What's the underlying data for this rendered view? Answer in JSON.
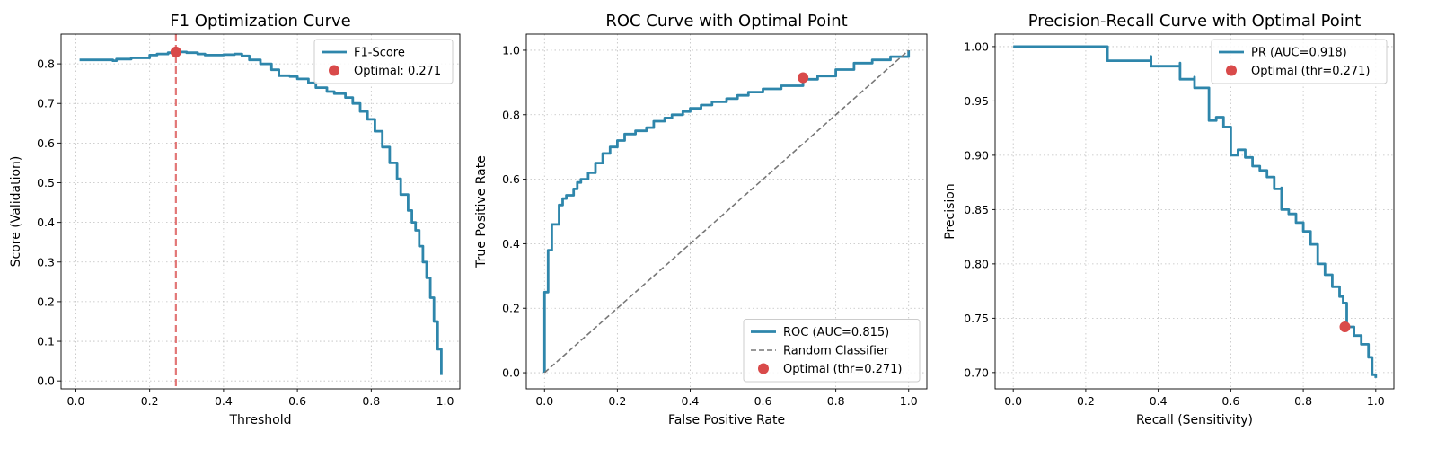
{
  "chart_data": [
    {
      "type": "line",
      "title": "F1 Optimization Curve",
      "xlabel": "Threshold",
      "ylabel": "Score (Validation)",
      "xlim": [
        -0.04,
        1.04
      ],
      "ylim": [
        -0.02,
        0.875
      ],
      "xticks": [
        0.0,
        0.2,
        0.4,
        0.6,
        0.8,
        1.0
      ],
      "xtick_labels": [
        "0.0",
        "0.2",
        "0.4",
        "0.6",
        "0.8",
        "1.0"
      ],
      "yticks": [
        0.0,
        0.1,
        0.2,
        0.3,
        0.4,
        0.5,
        0.6,
        0.7,
        0.8
      ],
      "ytick_labels": [
        "0.0",
        "0.1",
        "0.2",
        "0.3",
        "0.4",
        "0.5",
        "0.6",
        "0.7",
        "0.8"
      ],
      "grid": true,
      "legend_position": "top-right",
      "series": [
        {
          "name": "F1-Score",
          "color": "#2e86ab",
          "style": "step",
          "x": [
            0.01,
            0.05,
            0.1,
            0.11,
            0.15,
            0.2,
            0.22,
            0.25,
            0.27,
            0.3,
            0.33,
            0.35,
            0.4,
            0.43,
            0.45,
            0.47,
            0.5,
            0.53,
            0.55,
            0.58,
            0.6,
            0.63,
            0.65,
            0.68,
            0.7,
            0.73,
            0.75,
            0.77,
            0.79,
            0.81,
            0.83,
            0.85,
            0.87,
            0.88,
            0.9,
            0.91,
            0.92,
            0.93,
            0.94,
            0.95,
            0.96,
            0.97,
            0.98,
            0.99
          ],
          "y": [
            0.81,
            0.81,
            0.808,
            0.812,
            0.815,
            0.822,
            0.825,
            0.828,
            0.83,
            0.828,
            0.825,
            0.822,
            0.823,
            0.825,
            0.82,
            0.81,
            0.8,
            0.785,
            0.77,
            0.768,
            0.762,
            0.752,
            0.74,
            0.73,
            0.725,
            0.715,
            0.7,
            0.68,
            0.66,
            0.63,
            0.59,
            0.55,
            0.51,
            0.47,
            0.43,
            0.4,
            0.38,
            0.34,
            0.3,
            0.26,
            0.21,
            0.15,
            0.08,
            0.015
          ]
        }
      ],
      "optimal_point": {
        "label": "Optimal: 0.271",
        "x": 0.271,
        "y": 0.83,
        "color": "#d94a4a"
      },
      "vline": {
        "x": 0.271,
        "color": "#d94a4a"
      }
    },
    {
      "type": "line",
      "title": "ROC Curve with Optimal Point",
      "xlabel": "False Positive Rate",
      "ylabel": "True Positive Rate",
      "xlim": [
        -0.05,
        1.05
      ],
      "ylim": [
        -0.05,
        1.05
      ],
      "xticks": [
        0.0,
        0.2,
        0.4,
        0.6,
        0.8,
        1.0
      ],
      "xtick_labels": [
        "0.0",
        "0.2",
        "0.4",
        "0.6",
        "0.8",
        "1.0"
      ],
      "yticks": [
        0.0,
        0.2,
        0.4,
        0.6,
        0.8,
        1.0
      ],
      "ytick_labels": [
        "0.0",
        "0.2",
        "0.4",
        "0.6",
        "0.8",
        "1.0"
      ],
      "grid": true,
      "legend_position": "bottom-right",
      "series": [
        {
          "name": "ROC (AUC=0.815)",
          "color": "#2e86ab",
          "style": "step",
          "x": [
            0.0,
            0.0,
            0.01,
            0.01,
            0.02,
            0.02,
            0.04,
            0.05,
            0.06,
            0.08,
            0.09,
            0.1,
            0.12,
            0.14,
            0.16,
            0.18,
            0.2,
            0.22,
            0.25,
            0.28,
            0.3,
            0.33,
            0.35,
            0.38,
            0.4,
            0.43,
            0.46,
            0.5,
            0.53,
            0.56,
            0.6,
            0.65,
            0.71,
            0.75,
            0.8,
            0.85,
            0.9,
            0.95,
            1.0
          ],
          "y": [
            0.0,
            0.25,
            0.26,
            0.38,
            0.45,
            0.46,
            0.52,
            0.54,
            0.55,
            0.57,
            0.59,
            0.6,
            0.62,
            0.65,
            0.68,
            0.7,
            0.72,
            0.74,
            0.75,
            0.76,
            0.78,
            0.79,
            0.8,
            0.81,
            0.82,
            0.83,
            0.84,
            0.85,
            0.86,
            0.87,
            0.88,
            0.89,
            0.91,
            0.92,
            0.94,
            0.96,
            0.97,
            0.98,
            1.0
          ]
        },
        {
          "name": "Random Classifier",
          "color": "#777777",
          "style": "dashed",
          "x": [
            0.0,
            1.0
          ],
          "y": [
            0.0,
            1.0
          ]
        }
      ],
      "optimal_point": {
        "label": "Optimal (thr=0.271)",
        "x": 0.71,
        "y": 0.915,
        "color": "#d94a4a"
      }
    },
    {
      "type": "line",
      "title": "Precision-Recall Curve with Optimal Point",
      "xlabel": "Recall (Sensitivity)",
      "ylabel": "Precision",
      "xlim": [
        -0.05,
        1.05
      ],
      "ylim": [
        0.685,
        1.0115
      ],
      "xticks": [
        0.0,
        0.2,
        0.4,
        0.6,
        0.8,
        1.0
      ],
      "xtick_labels": [
        "0.0",
        "0.2",
        "0.4",
        "0.6",
        "0.8",
        "1.0"
      ],
      "yticks": [
        0.7,
        0.75,
        0.8,
        0.85,
        0.9,
        0.95,
        1.0
      ],
      "ytick_labels": [
        "0.70",
        "0.75",
        "0.80",
        "0.85",
        "0.90",
        "0.95",
        "1.00"
      ],
      "grid": true,
      "legend_position": "top-right",
      "series": [
        {
          "name": "PR (AUC=0.918)",
          "color": "#2e86ab",
          "style": "step",
          "x": [
            0.0,
            0.26,
            0.26,
            0.38,
            0.38,
            0.46,
            0.46,
            0.5,
            0.5,
            0.54,
            0.54,
            0.56,
            0.58,
            0.6,
            0.62,
            0.64,
            0.66,
            0.68,
            0.7,
            0.72,
            0.74,
            0.74,
            0.76,
            0.78,
            0.8,
            0.82,
            0.84,
            0.86,
            0.88,
            0.9,
            0.91,
            0.92,
            0.94,
            0.96,
            0.98,
            0.99,
            1.0
          ],
          "y": [
            1.0,
            1.0,
            0.987,
            0.991,
            0.982,
            0.985,
            0.97,
            0.972,
            0.962,
            0.955,
            0.932,
            0.935,
            0.926,
            0.9,
            0.905,
            0.898,
            0.89,
            0.886,
            0.88,
            0.869,
            0.87,
            0.85,
            0.846,
            0.838,
            0.83,
            0.818,
            0.8,
            0.79,
            0.779,
            0.77,
            0.764,
            0.742,
            0.734,
            0.726,
            0.714,
            0.698,
            0.695
          ]
        }
      ],
      "optimal_point": {
        "label": "Optimal (thr=0.271)",
        "x": 0.915,
        "y": 0.742,
        "color": "#d94a4a"
      }
    }
  ]
}
